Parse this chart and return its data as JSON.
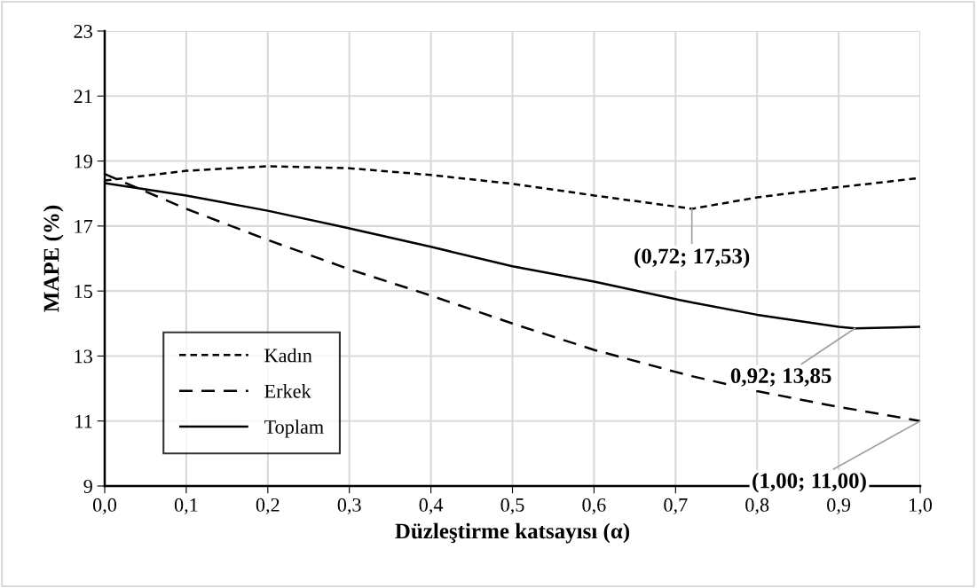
{
  "chart_data": {
    "type": "line",
    "xlabel": "Düzleştirme katsayısı (α)",
    "ylabel": "MAPE (%)",
    "x": [
      0,
      0.1,
      0.2,
      0.3,
      0.4,
      0.5,
      0.6,
      0.7,
      0.72,
      0.8,
      0.9,
      0.92,
      1.0
    ],
    "series": [
      {
        "name": "Kadın",
        "color": "#000000",
        "line_style": "dotted",
        "values": [
          18.4,
          18.7,
          18.84,
          18.78,
          18.57,
          18.3,
          17.94,
          17.6,
          17.53,
          17.88,
          18.2,
          18.25,
          18.48
        ]
      },
      {
        "name": "Erkek",
        "color": "#000000",
        "line_style": "dashed",
        "values": [
          18.6,
          17.53,
          16.57,
          15.67,
          14.86,
          14.0,
          13.19,
          12.51,
          12.38,
          11.92,
          11.43,
          11.35,
          11.0
        ]
      },
      {
        "name": "Toplam",
        "color": "#000000",
        "line_style": "solid",
        "values": [
          18.32,
          17.94,
          17.47,
          16.93,
          16.36,
          15.76,
          15.29,
          14.75,
          14.65,
          14.27,
          13.9,
          13.85,
          13.9
        ]
      }
    ],
    "xlim": [
      0,
      1.0
    ],
    "xticks": [
      {
        "value": 0,
        "label": "0,0"
      },
      {
        "value": 0.1,
        "label": "0,1"
      },
      {
        "value": 0.2,
        "label": "0,2"
      },
      {
        "value": 0.3,
        "label": "0,3"
      },
      {
        "value": 0.4,
        "label": "0,4"
      },
      {
        "value": 0.5,
        "label": "0,5"
      },
      {
        "value": 0.6,
        "label": "0,6"
      },
      {
        "value": 0.7,
        "label": "0,7"
      },
      {
        "value": 0.8,
        "label": "0,8"
      },
      {
        "value": 0.9,
        "label": "0,9"
      },
      {
        "value": 1.0,
        "label": "1,0"
      }
    ],
    "ylim": [
      9,
      23
    ],
    "yticks": [
      9,
      11,
      13,
      15,
      17,
      19,
      21,
      23
    ],
    "annotations": [
      {
        "text": "(0,72; 17,53)",
        "x": 0.72,
        "y": 17.53
      },
      {
        "text": "0,92; 13,85",
        "x": 0.92,
        "y": 13.85
      },
      {
        "text": "(1,00; 11,00)",
        "x": 1.0,
        "y": 11.0
      }
    ],
    "grid": true,
    "legend": "bottom left",
    "marker": "none"
  }
}
